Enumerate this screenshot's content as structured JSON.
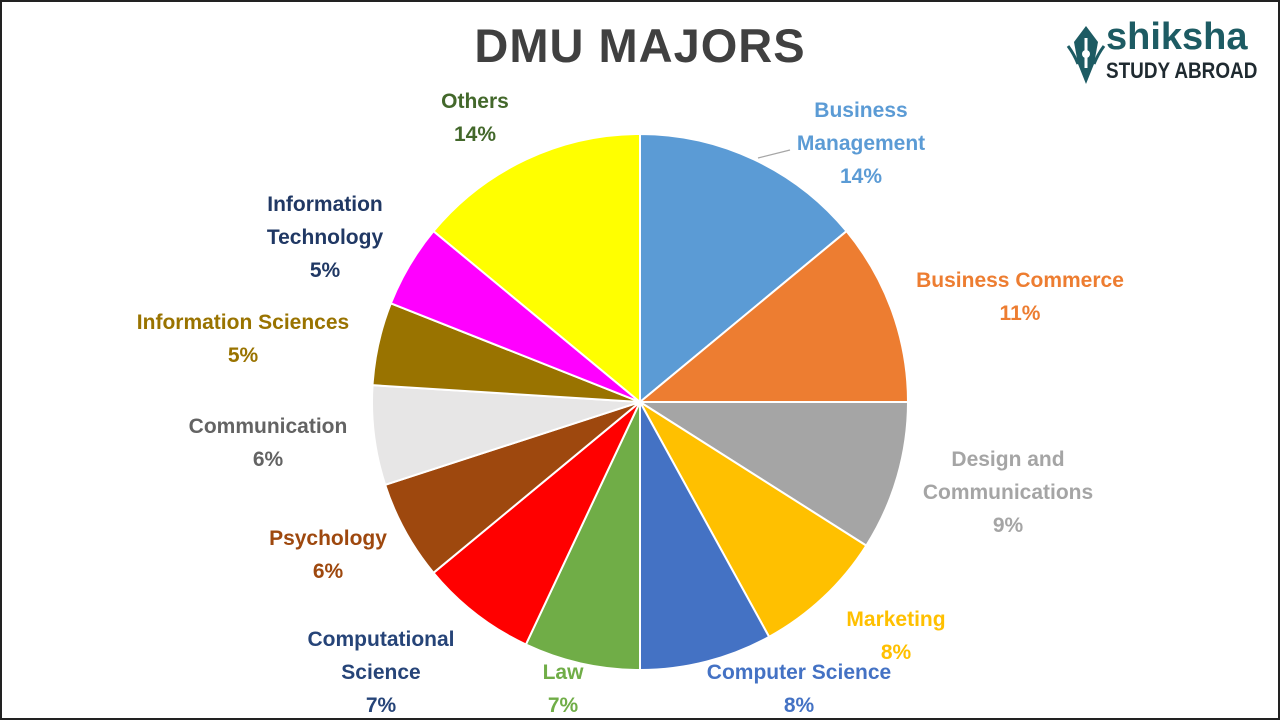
{
  "header": {
    "title": "DMU MAJORS"
  },
  "logo": {
    "brand": "shiksha",
    "tagline": "STUDY ABROAD"
  },
  "chart_data": {
    "type": "pie",
    "title": "DMU MAJORS",
    "start_angle_deg": 0,
    "direction": "clockwise",
    "slices": [
      {
        "label_lines": [
          "Business",
          "Management"
        ],
        "value": 14,
        "value_label": "14%",
        "color": "#5b9bd5",
        "label_color": "#5b9bd5"
      },
      {
        "label_lines": [
          "Business Commerce"
        ],
        "value": 11,
        "value_label": "11%",
        "color": "#ed7d31",
        "label_color": "#ed7d31"
      },
      {
        "label_lines": [
          "Design and",
          "Communications"
        ],
        "value": 9,
        "value_label": "9%",
        "color": "#a5a5a5",
        "label_color": "#a5a5a5"
      },
      {
        "label_lines": [
          "Marketing"
        ],
        "value": 8,
        "value_label": "8%",
        "color": "#ffc000",
        "label_color": "#ffc000"
      },
      {
        "label_lines": [
          "Computer Science"
        ],
        "value": 8,
        "value_label": "8%",
        "color": "#4472c4",
        "label_color": "#4472c4"
      },
      {
        "label_lines": [
          "Law"
        ],
        "value": 7,
        "value_label": "7%",
        "color": "#70ad47",
        "label_color": "#70ad47"
      },
      {
        "label_lines": [
          "Computational",
          "Science"
        ],
        "value": 7,
        "value_label": "7%",
        "color": "#ff0000",
        "label_color": "#264478"
      },
      {
        "label_lines": [
          "Psychology"
        ],
        "value": 6,
        "value_label": "6%",
        "color": "#9e480e",
        "label_color": "#9e480e"
      },
      {
        "label_lines": [
          "Communication"
        ],
        "value": 6,
        "value_label": "6%",
        "color": "#e7e6e6",
        "label_color": "#636363"
      },
      {
        "label_lines": [
          "Information Sciences"
        ],
        "value": 5,
        "value_label": "5%",
        "color": "#997300",
        "label_color": "#997300"
      },
      {
        "label_lines": [
          "Information",
          "Technology"
        ],
        "value": 5,
        "value_label": "5%",
        "color": "#ff00ff",
        "label_color": "#203864"
      },
      {
        "label_lines": [
          "Others"
        ],
        "value": 14,
        "value_label": "14%",
        "color": "#ffff00",
        "label_color": "#43682b"
      }
    ]
  }
}
